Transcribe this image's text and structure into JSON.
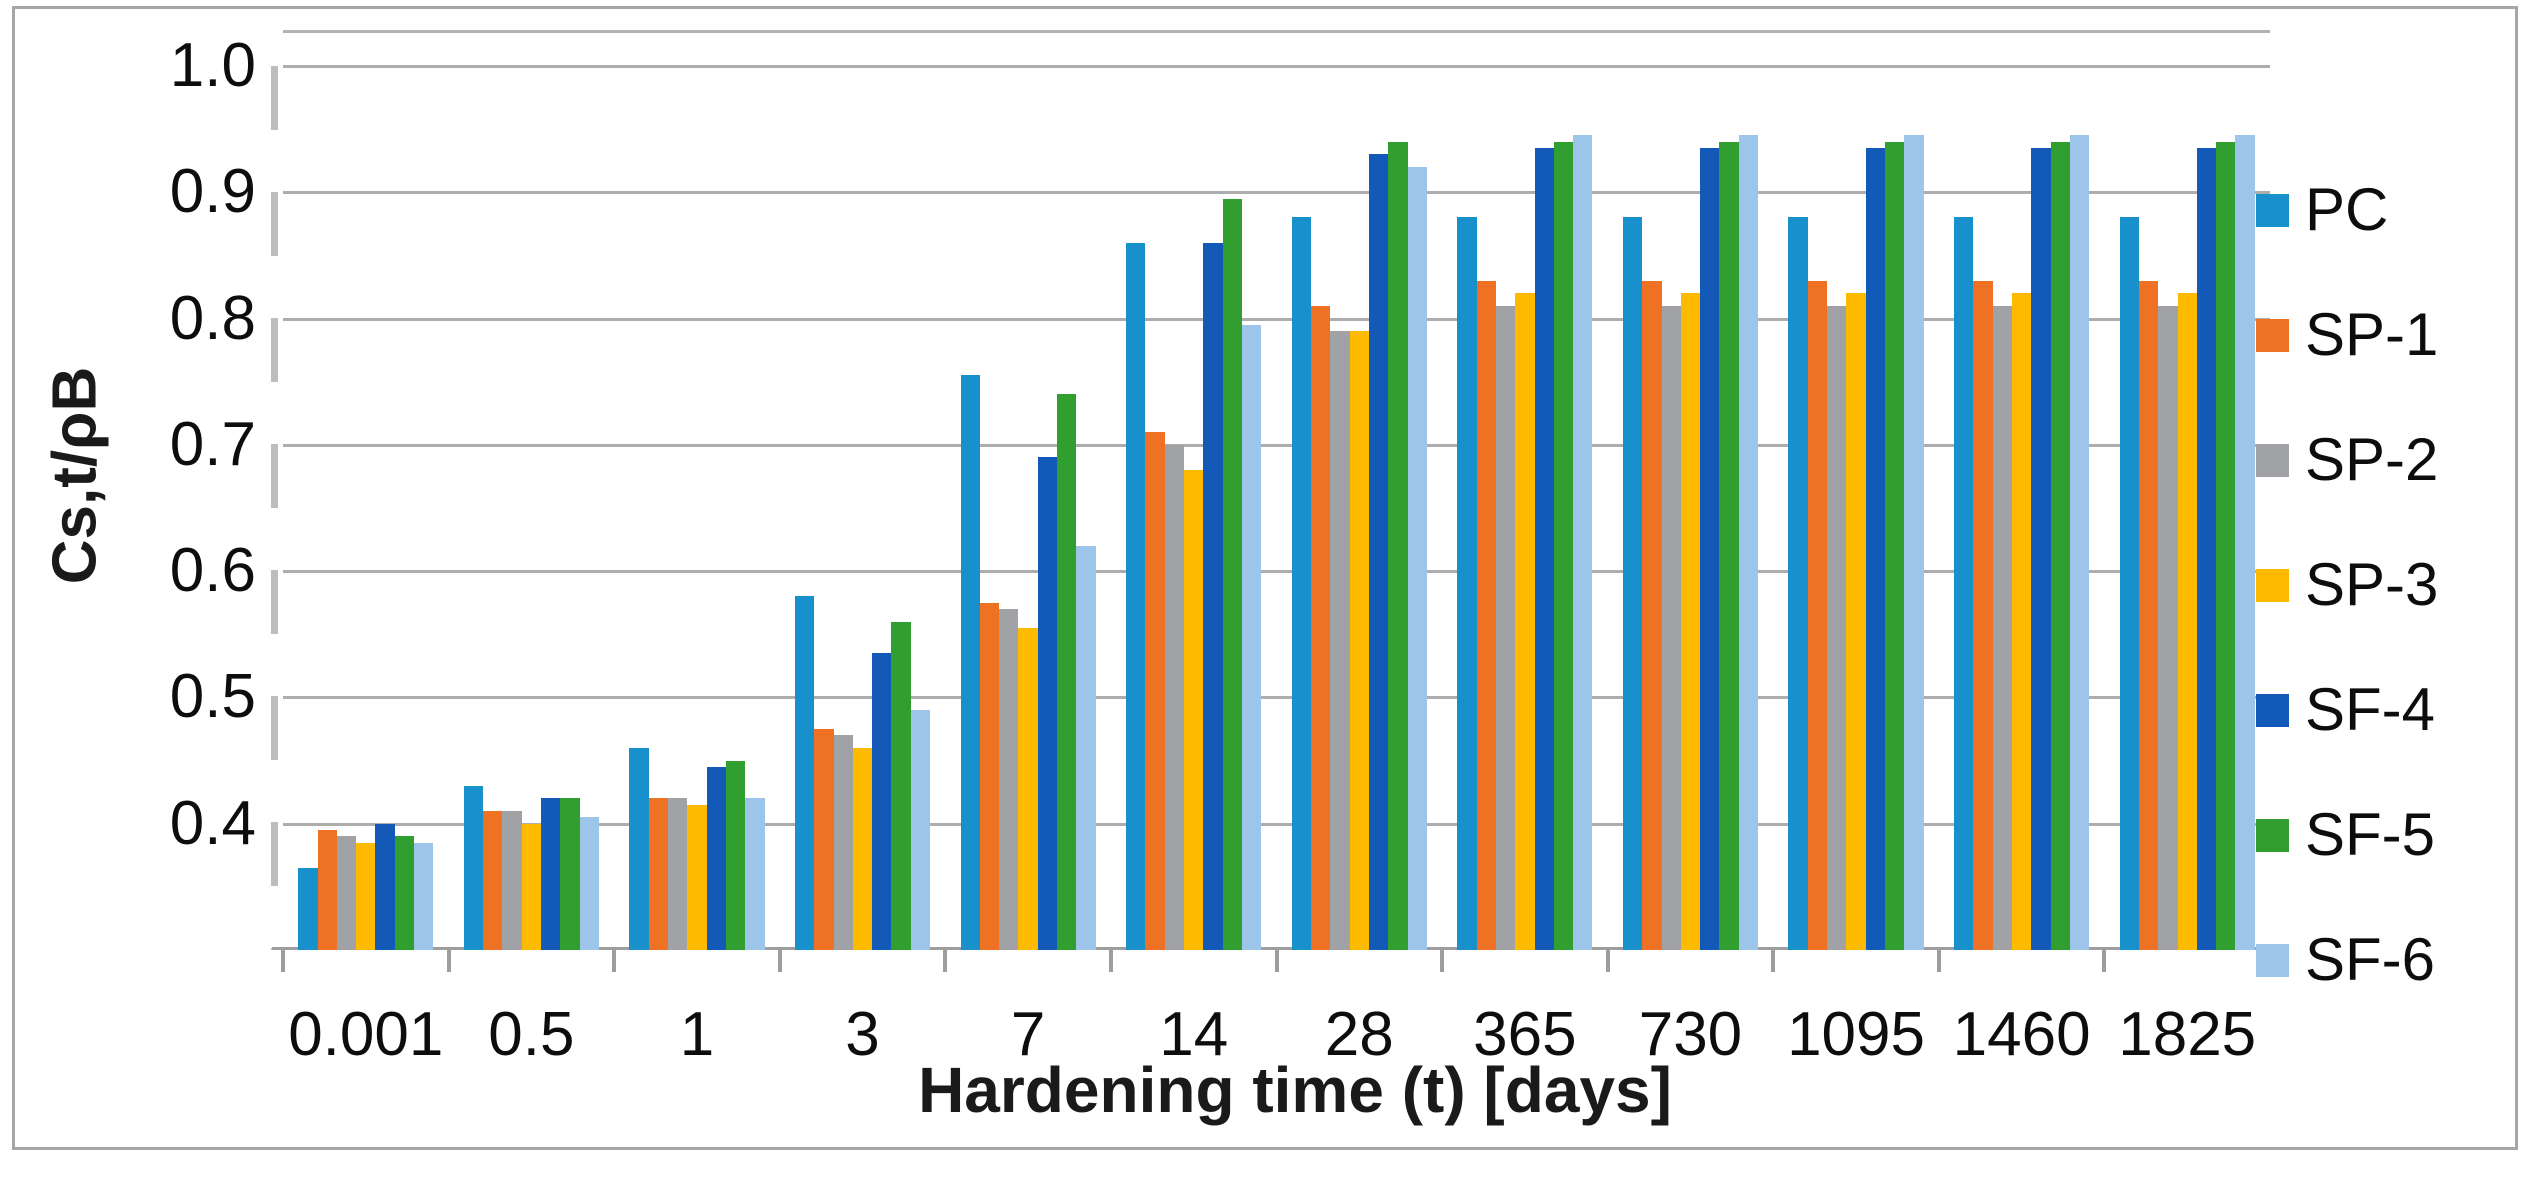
{
  "chart_data": {
    "type": "bar",
    "title": "",
    "xlabel": "Hardening time (t) [days]",
    "ylabel": "Cs,t/ρB",
    "categories": [
      "0.001",
      "0.5",
      "1",
      "3",
      "7",
      "14",
      "28",
      "365",
      "730",
      "1095",
      "1460",
      "1825"
    ],
    "series": [
      {
        "name": "PC",
        "color": "#1790cb",
        "values": [
          0.365,
          0.43,
          0.46,
          0.58,
          0.755,
          0.86,
          0.88,
          0.88,
          0.88,
          0.88,
          0.88,
          0.88
        ]
      },
      {
        "name": "SP-1",
        "color": "#ef7123",
        "values": [
          0.395,
          0.41,
          0.42,
          0.475,
          0.575,
          0.71,
          0.81,
          0.83,
          0.83,
          0.83,
          0.83,
          0.83
        ]
      },
      {
        "name": "SP-2",
        "color": "#a0a2a5",
        "values": [
          0.39,
          0.41,
          0.42,
          0.47,
          0.57,
          0.7,
          0.79,
          0.81,
          0.81,
          0.81,
          0.81,
          0.81
        ]
      },
      {
        "name": "SP-3",
        "color": "#fdba00",
        "values": [
          0.385,
          0.4,
          0.415,
          0.46,
          0.555,
          0.68,
          0.79,
          0.82,
          0.82,
          0.82,
          0.82,
          0.82
        ]
      },
      {
        "name": "SF-4",
        "color": "#1259b8",
        "values": [
          0.4,
          0.42,
          0.445,
          0.535,
          0.69,
          0.86,
          0.93,
          0.935,
          0.935,
          0.935,
          0.935,
          0.935
        ]
      },
      {
        "name": "SF-5",
        "color": "#319e30",
        "values": [
          0.39,
          0.42,
          0.45,
          0.56,
          0.74,
          0.895,
          0.94,
          0.94,
          0.94,
          0.94,
          0.94,
          0.94
        ]
      },
      {
        "name": "SF-6",
        "color": "#9cc5e9",
        "values": [
          0.385,
          0.405,
          0.42,
          0.49,
          0.62,
          0.795,
          0.92,
          0.945,
          0.945,
          0.945,
          0.945,
          0.945
        ]
      }
    ],
    "ylim": [
      0.3,
      1.0
    ],
    "yticks": [
      "1.0",
      "0.9",
      "0.8",
      "0.7",
      "0.6",
      "0.5",
      "0.4"
    ],
    "grid": true,
    "legend_position": "right"
  },
  "colors": {
    "gridline": "#adadad",
    "axis_line": "#9d9d9d",
    "figure_border": "#a6a6a6",
    "text": "#0d0d0d"
  }
}
